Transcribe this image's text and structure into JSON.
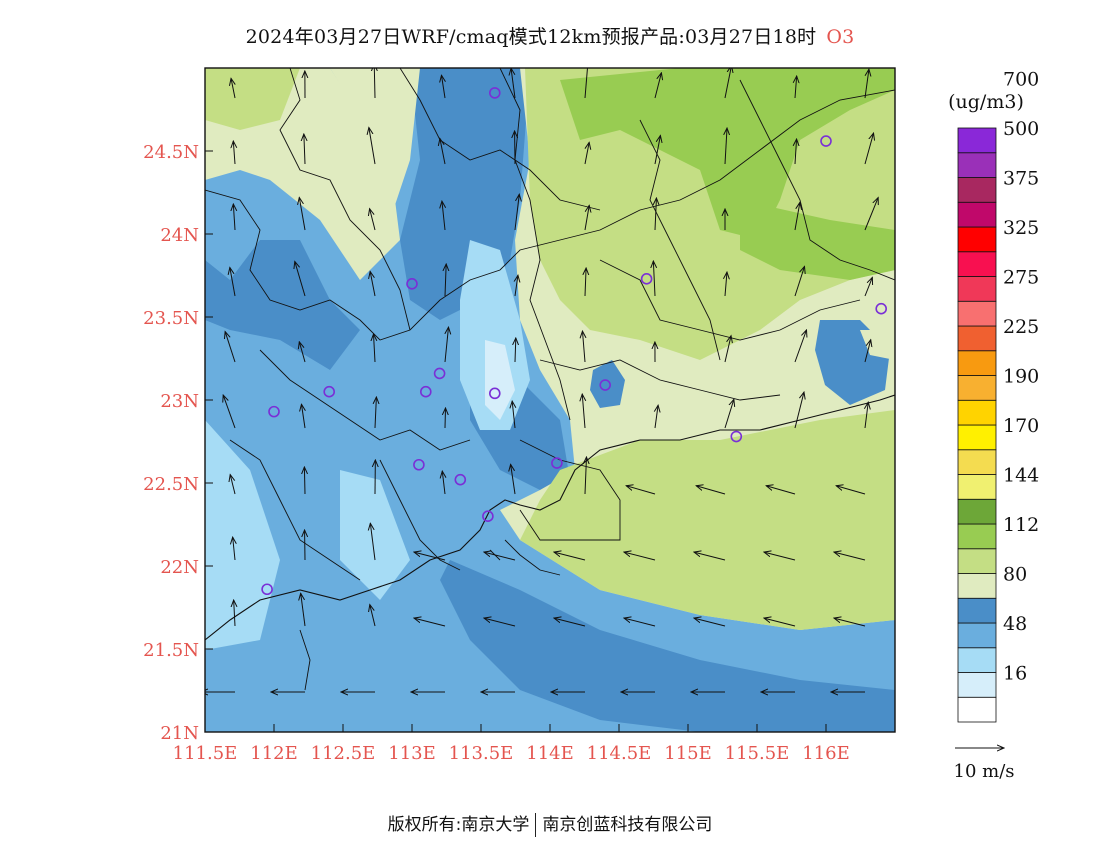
{
  "title": {
    "main": "2024年03月27日WRF/cmaq模式12km预报产品:03月27日18时",
    "species": "O3"
  },
  "map": {
    "lon_range": [
      111.5,
      116.5
    ],
    "lat_range": [
      21.0,
      25.0
    ],
    "lon_ticks": [
      "111.5E",
      "112E",
      "112.5E",
      "113E",
      "113.5E",
      "114E",
      "114.5E",
      "115E",
      "115.5E",
      "116E"
    ],
    "lat_ticks": [
      "21N",
      "21.5N",
      "22N",
      "22.5N",
      "23N",
      "23.5N",
      "24N",
      "24.5N"
    ],
    "tick_color": "#e4554f"
  },
  "legend": {
    "unit": "(ug/m3)",
    "labels": [
      "16",
      "48",
      "80",
      "112",
      "144",
      "170",
      "190",
      "225",
      "275",
      "325",
      "375",
      "500",
      "700"
    ],
    "colors": [
      "#ffffff",
      "#d6eefa",
      "#a6dcf5",
      "#6aaede",
      "#4a8ec8",
      "#e0ebc0",
      "#c4de84",
      "#98cc52",
      "#6da738",
      "#f0f070",
      "#f4dc50",
      "#fff000",
      "#ffd300",
      "#f8b030",
      "#f89a10",
      "#f06030",
      "#f87070",
      "#f03858",
      "#f81050",
      "#ff0000",
      "#c0086a",
      "#a82860",
      "#9a30b8",
      "#8a28d8"
    ]
  },
  "wind_scale": {
    "label": "10  m/s"
  },
  "stations": [
    {
      "lon": 113.6,
      "lat": 24.85
    },
    {
      "lon": 116.0,
      "lat": 24.56
    },
    {
      "lon": 114.7,
      "lat": 23.73
    },
    {
      "lon": 116.4,
      "lat": 23.55
    },
    {
      "lon": 113.0,
      "lat": 23.7
    },
    {
      "lon": 113.2,
      "lat": 23.16
    },
    {
      "lon": 112.4,
      "lat": 23.05
    },
    {
      "lon": 113.1,
      "lat": 23.05
    },
    {
      "lon": 113.6,
      "lat": 23.04
    },
    {
      "lon": 114.4,
      "lat": 23.09
    },
    {
      "lon": 112.0,
      "lat": 22.93
    },
    {
      "lon": 115.35,
      "lat": 22.78
    },
    {
      "lon": 113.05,
      "lat": 22.61
    },
    {
      "lon": 114.05,
      "lat": 22.62
    },
    {
      "lon": 113.35,
      "lat": 22.52
    },
    {
      "lon": 113.55,
      "lat": 22.3
    },
    {
      "lon": 111.95,
      "lat": 21.86
    }
  ],
  "copyright": {
    "owner": "版权所有:南京大学",
    "partner": "南京创蓝科技有限公司"
  }
}
